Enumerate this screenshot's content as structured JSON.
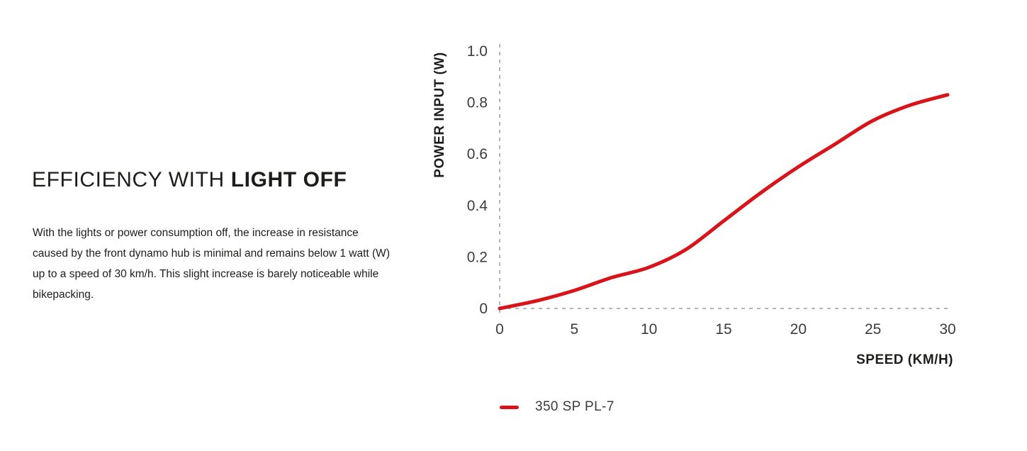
{
  "intro": {
    "heading_regular": "EFFICIENCY WITH ",
    "heading_bold": "LIGHT OFF",
    "body": "With the lights or power consumption off, the increase in resistance caused by the front dynamo hub is minimal and remains below 1 watt (W) up to a speed of 30 km/h. This slight increase is barely noticeable while bikepacking."
  },
  "chart_data": {
    "type": "line",
    "title": "",
    "xlabel": "SPEED (KM/H)",
    "ylabel": "POWER INPUT (W)",
    "xlim": [
      0,
      30
    ],
    "ylim": [
      0,
      1.0
    ],
    "x_ticks": [
      "0",
      "5",
      "10",
      "15",
      "20",
      "25",
      "30"
    ],
    "x_tick_values": [
      0,
      5,
      10,
      15,
      20,
      25,
      30
    ],
    "y_ticks": [
      "0",
      "0.2",
      "0.4",
      "0.6",
      "0.8",
      "1.0"
    ],
    "y_tick_values": [
      0,
      0.2,
      0.4,
      0.6,
      0.8,
      1.0
    ],
    "x": [
      0,
      2.5,
      5,
      7.5,
      10,
      12.5,
      15,
      17.5,
      20,
      22.5,
      25,
      27.5,
      30
    ],
    "series": [
      {
        "name": "350 SP PL-7",
        "color": "#d8141a",
        "values": [
          0,
          0.03,
          0.07,
          0.12,
          0.16,
          0.23,
          0.34,
          0.45,
          0.55,
          0.64,
          0.73,
          0.79,
          0.83
        ]
      }
    ],
    "grid": false,
    "axis_style": "dashed",
    "axis_color": "#b5b5b5",
    "legend_position": "bottom-left"
  },
  "colors": {
    "heading_text": "#1d1d1b",
    "tick_text": "#3c3c3b",
    "background": "#ffffff"
  }
}
